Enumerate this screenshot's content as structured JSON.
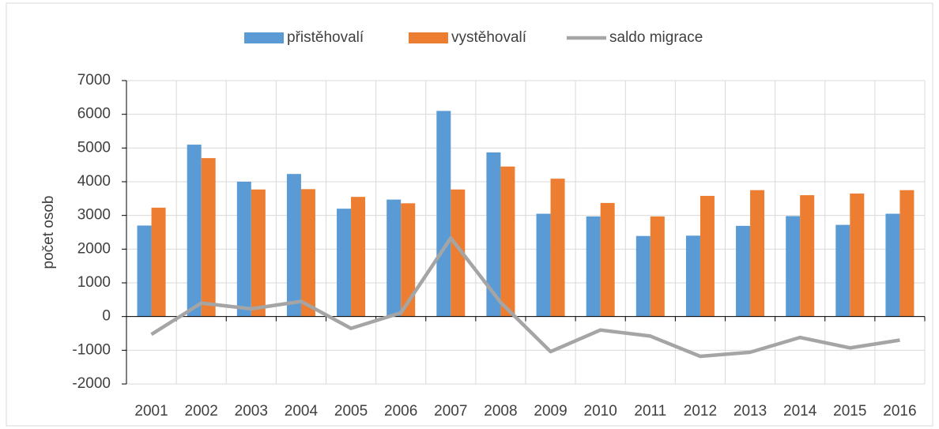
{
  "chart_data": {
    "type": "bar_line",
    "y_label": "počet osob",
    "categories": [
      "2001",
      "2002",
      "2003",
      "2004",
      "2005",
      "2006",
      "2007",
      "2008",
      "2009",
      "2010",
      "2011",
      "2012",
      "2013",
      "2014",
      "2015",
      "2016"
    ],
    "series": [
      {
        "name": "přistěhovalí",
        "type": "bar",
        "color": "#5b9bd5",
        "values": [
          2700,
          5100,
          4000,
          4230,
          3200,
          3470,
          6100,
          4870,
          3050,
          2970,
          2390,
          2400,
          2690,
          2980,
          2720,
          3050
        ]
      },
      {
        "name": "vystěhovalí",
        "type": "bar",
        "color": "#ed7d31",
        "values": [
          3230,
          4700,
          3770,
          3780,
          3550,
          3360,
          3770,
          4450,
          4090,
          3370,
          2970,
          3580,
          3750,
          3600,
          3650,
          3750
        ]
      },
      {
        "name": "saldo migrace",
        "type": "line",
        "color": "#a5a5a5",
        "values": [
          -530,
          400,
          230,
          450,
          -350,
          110,
          2330,
          420,
          -1040,
          -400,
          -580,
          -1180,
          -1060,
          -620,
          -930,
          -700
        ]
      }
    ],
    "ylim": [
      -2000,
      7000
    ],
    "yticks": [
      -2000,
      -1000,
      0,
      1000,
      2000,
      3000,
      4000,
      5000,
      6000,
      7000
    ],
    "grid": true,
    "legend": "top"
  }
}
